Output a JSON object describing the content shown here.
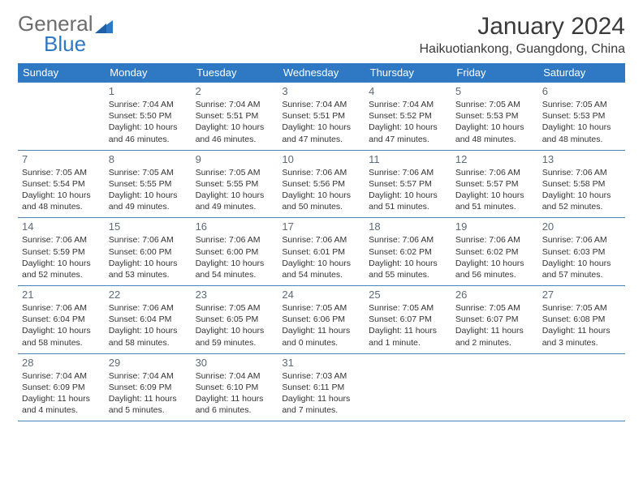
{
  "logo": {
    "line1": "General",
    "line2": "Blue",
    "accent": "#2f78c4"
  },
  "title": "January 2024",
  "location": "Haikuotiankong, Guangdong, China",
  "colors": {
    "header_bg": "#2f78c4",
    "header_text": "#ffffff",
    "border": "#4a84bc",
    "daynum": "#5d6a77",
    "body_text": "#333333",
    "page_bg": "#ffffff"
  },
  "typography": {
    "title_fontsize": 30,
    "location_fontsize": 16,
    "dow_fontsize": 13,
    "daynum_fontsize": 13,
    "cell_fontsize": 10.5
  },
  "dow": [
    "Sunday",
    "Monday",
    "Tuesday",
    "Wednesday",
    "Thursday",
    "Friday",
    "Saturday"
  ],
  "weeks": [
    [
      null,
      {
        "n": "1",
        "sr": "7:04 AM",
        "ss": "5:50 PM",
        "dl": "10 hours and 46 minutes."
      },
      {
        "n": "2",
        "sr": "7:04 AM",
        "ss": "5:51 PM",
        "dl": "10 hours and 46 minutes."
      },
      {
        "n": "3",
        "sr": "7:04 AM",
        "ss": "5:51 PM",
        "dl": "10 hours and 47 minutes."
      },
      {
        "n": "4",
        "sr": "7:04 AM",
        "ss": "5:52 PM",
        "dl": "10 hours and 47 minutes."
      },
      {
        "n": "5",
        "sr": "7:05 AM",
        "ss": "5:53 PM",
        "dl": "10 hours and 48 minutes."
      },
      {
        "n": "6",
        "sr": "7:05 AM",
        "ss": "5:53 PM",
        "dl": "10 hours and 48 minutes."
      }
    ],
    [
      {
        "n": "7",
        "sr": "7:05 AM",
        "ss": "5:54 PM",
        "dl": "10 hours and 48 minutes."
      },
      {
        "n": "8",
        "sr": "7:05 AM",
        "ss": "5:55 PM",
        "dl": "10 hours and 49 minutes."
      },
      {
        "n": "9",
        "sr": "7:05 AM",
        "ss": "5:55 PM",
        "dl": "10 hours and 49 minutes."
      },
      {
        "n": "10",
        "sr": "7:06 AM",
        "ss": "5:56 PM",
        "dl": "10 hours and 50 minutes."
      },
      {
        "n": "11",
        "sr": "7:06 AM",
        "ss": "5:57 PM",
        "dl": "10 hours and 51 minutes."
      },
      {
        "n": "12",
        "sr": "7:06 AM",
        "ss": "5:57 PM",
        "dl": "10 hours and 51 minutes."
      },
      {
        "n": "13",
        "sr": "7:06 AM",
        "ss": "5:58 PM",
        "dl": "10 hours and 52 minutes."
      }
    ],
    [
      {
        "n": "14",
        "sr": "7:06 AM",
        "ss": "5:59 PM",
        "dl": "10 hours and 52 minutes."
      },
      {
        "n": "15",
        "sr": "7:06 AM",
        "ss": "6:00 PM",
        "dl": "10 hours and 53 minutes."
      },
      {
        "n": "16",
        "sr": "7:06 AM",
        "ss": "6:00 PM",
        "dl": "10 hours and 54 minutes."
      },
      {
        "n": "17",
        "sr": "7:06 AM",
        "ss": "6:01 PM",
        "dl": "10 hours and 54 minutes."
      },
      {
        "n": "18",
        "sr": "7:06 AM",
        "ss": "6:02 PM",
        "dl": "10 hours and 55 minutes."
      },
      {
        "n": "19",
        "sr": "7:06 AM",
        "ss": "6:02 PM",
        "dl": "10 hours and 56 minutes."
      },
      {
        "n": "20",
        "sr": "7:06 AM",
        "ss": "6:03 PM",
        "dl": "10 hours and 57 minutes."
      }
    ],
    [
      {
        "n": "21",
        "sr": "7:06 AM",
        "ss": "6:04 PM",
        "dl": "10 hours and 58 minutes."
      },
      {
        "n": "22",
        "sr": "7:06 AM",
        "ss": "6:04 PM",
        "dl": "10 hours and 58 minutes."
      },
      {
        "n": "23",
        "sr": "7:05 AM",
        "ss": "6:05 PM",
        "dl": "10 hours and 59 minutes."
      },
      {
        "n": "24",
        "sr": "7:05 AM",
        "ss": "6:06 PM",
        "dl": "11 hours and 0 minutes."
      },
      {
        "n": "25",
        "sr": "7:05 AM",
        "ss": "6:07 PM",
        "dl": "11 hours and 1 minute."
      },
      {
        "n": "26",
        "sr": "7:05 AM",
        "ss": "6:07 PM",
        "dl": "11 hours and 2 minutes."
      },
      {
        "n": "27",
        "sr": "7:05 AM",
        "ss": "6:08 PM",
        "dl": "11 hours and 3 minutes."
      }
    ],
    [
      {
        "n": "28",
        "sr": "7:04 AM",
        "ss": "6:09 PM",
        "dl": "11 hours and 4 minutes."
      },
      {
        "n": "29",
        "sr": "7:04 AM",
        "ss": "6:09 PM",
        "dl": "11 hours and 5 minutes."
      },
      {
        "n": "30",
        "sr": "7:04 AM",
        "ss": "6:10 PM",
        "dl": "11 hours and 6 minutes."
      },
      {
        "n": "31",
        "sr": "7:03 AM",
        "ss": "6:11 PM",
        "dl": "11 hours and 7 minutes."
      },
      null,
      null,
      null
    ]
  ],
  "labels": {
    "sunrise": "Sunrise:",
    "sunset": "Sunset:",
    "daylight": "Daylight:"
  }
}
